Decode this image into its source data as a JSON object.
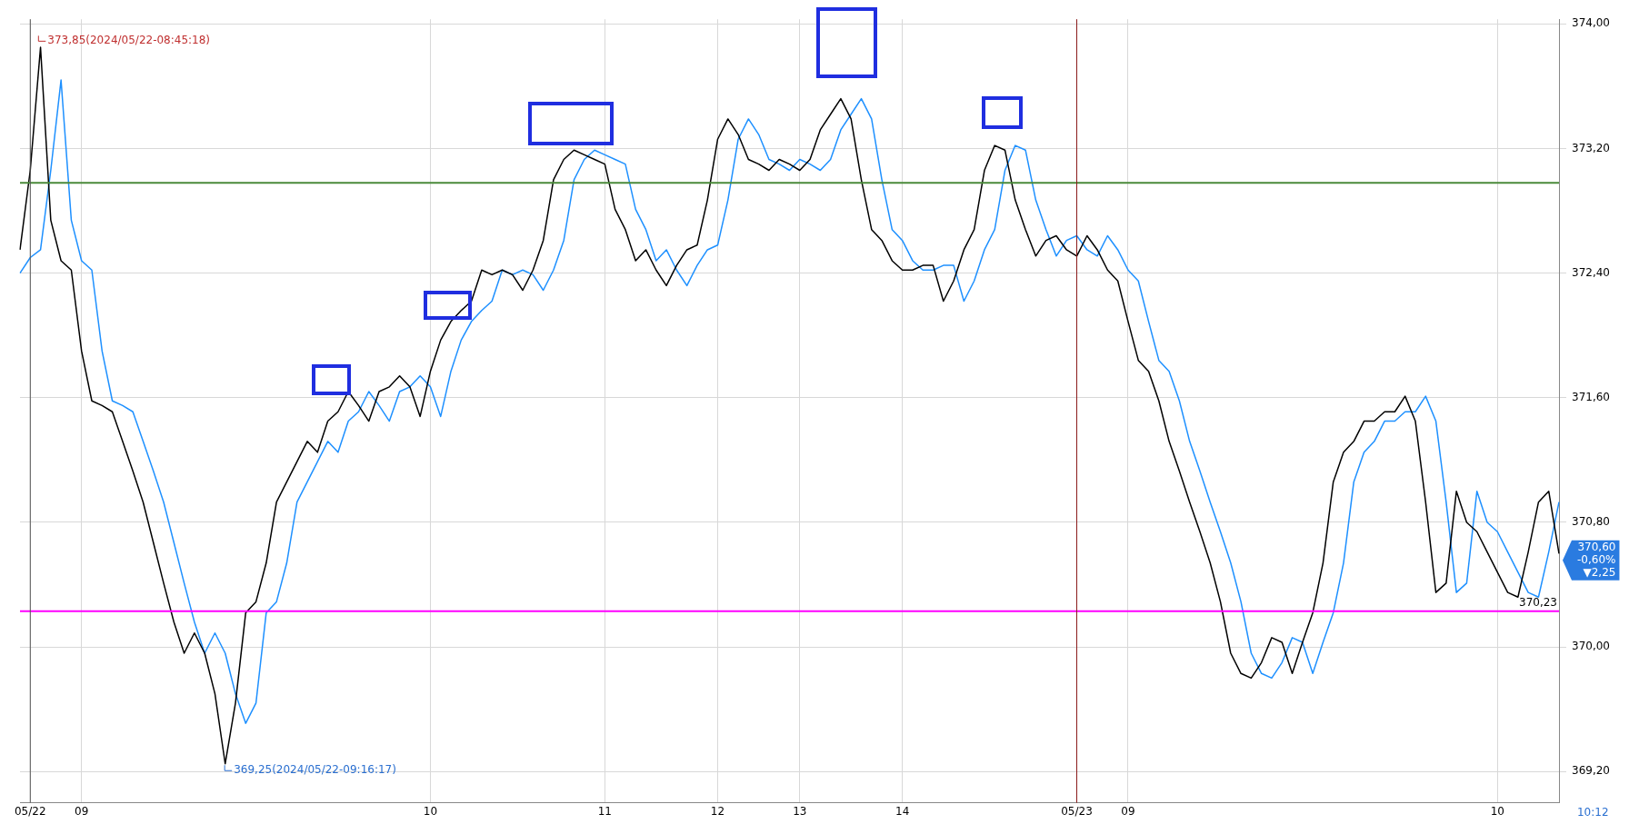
{
  "chart_data": {
    "type": "line",
    "categories": [
      null,
      "05/22",
      null,
      null,
      null,
      null,
      "09",
      null,
      null,
      null,
      null,
      null,
      null,
      null,
      null,
      null,
      null,
      null,
      null,
      null,
      null,
      null,
      null,
      null,
      null,
      null,
      null,
      null,
      null,
      null,
      null,
      null,
      null,
      null,
      null,
      null,
      null,
      null,
      null,
      null,
      "10",
      null,
      null,
      null,
      null,
      null,
      null,
      null,
      null,
      null,
      null,
      null,
      null,
      null,
      null,
      null,
      null,
      "11",
      null,
      null,
      null,
      null,
      null,
      null,
      null,
      null,
      null,
      null,
      "12",
      null,
      null,
      null,
      null,
      null,
      null,
      null,
      "13",
      null,
      null,
      null,
      null,
      null,
      null,
      null,
      null,
      null,
      "14",
      null,
      null,
      null,
      null,
      null,
      null,
      null,
      null,
      null,
      null,
      null,
      null,
      null,
      null,
      null,
      null,
      "05/23",
      null,
      null,
      null,
      null,
      "09",
      null,
      null,
      null,
      null,
      null,
      null,
      null,
      null,
      null,
      null,
      null,
      null,
      null,
      null,
      null,
      null,
      null,
      null,
      null,
      null,
      null,
      null,
      null,
      null,
      null,
      null,
      null,
      null,
      null,
      null,
      null,
      null,
      null,
      null,
      null,
      "10",
      null,
      null,
      null,
      null,
      null,
      null
    ],
    "series": [
      {
        "color": "#000000",
        "values": [
          372.55,
          373.06,
          373.85,
          372.74,
          372.48,
          372.42,
          371.9,
          371.58,
          371.55,
          371.51,
          371.32,
          371.13,
          370.93,
          370.67,
          370.41,
          370.16,
          369.96,
          370.09,
          369.96,
          369.7,
          369.25,
          369.64,
          370.22,
          370.29,
          370.54,
          370.93,
          371.06,
          371.19,
          371.32,
          371.25,
          371.45,
          371.51,
          371.64,
          371.55,
          371.45,
          371.64,
          371.67,
          371.74,
          371.67,
          371.48,
          371.77,
          371.97,
          372.09,
          372.16,
          372.22,
          372.42,
          372.39,
          372.42,
          372.39,
          372.29,
          372.42,
          372.61,
          373.0,
          373.13,
          373.19,
          373.16,
          373.13,
          373.1,
          372.81,
          372.68,
          372.48,
          372.55,
          372.42,
          372.32,
          372.45,
          372.55,
          372.58,
          372.87,
          373.26,
          373.39,
          373.29,
          373.13,
          373.1,
          373.06,
          373.13,
          373.1,
          373.06,
          373.13,
          373.32,
          373.42,
          373.52,
          373.39,
          373.0,
          372.68,
          372.61,
          372.48,
          372.42,
          372.42,
          372.45,
          372.45,
          372.22,
          372.35,
          372.55,
          372.68,
          373.06,
          373.22,
          373.19,
          372.87,
          372.68,
          372.51,
          372.61,
          372.64,
          372.55,
          372.51,
          372.64,
          372.55,
          372.42,
          372.35,
          372.09,
          371.84,
          371.77,
          371.58,
          371.32,
          371.13,
          370.93,
          370.74,
          370.54,
          370.29,
          369.96,
          369.83,
          369.8,
          369.9,
          370.06,
          370.03,
          369.83,
          370.03,
          370.22,
          370.54,
          371.06,
          371.25,
          371.32,
          371.45,
          371.45,
          371.51,
          371.51,
          371.61,
          371.45,
          370.93,
          370.35,
          370.41,
          371.0,
          370.8,
          370.74,
          370.61,
          370.48,
          370.35,
          370.32,
          370.61,
          370.93,
          371.0,
          370.6
        ]
      },
      {
        "color": "#1e90ff",
        "values": [
          372.4,
          372.5,
          372.55,
          373.06,
          373.64,
          372.74,
          372.48,
          372.42,
          371.9,
          371.58,
          371.55,
          371.51,
          371.32,
          371.13,
          370.93,
          370.67,
          370.41,
          370.16,
          369.96,
          370.09,
          369.96,
          369.7,
          369.51,
          369.64,
          370.22,
          370.29,
          370.54,
          370.93,
          371.06,
          371.19,
          371.32,
          371.25,
          371.45,
          371.51,
          371.64,
          371.55,
          371.45,
          371.64,
          371.67,
          371.74,
          371.67,
          371.48,
          371.77,
          371.97,
          372.09,
          372.16,
          372.22,
          372.42,
          372.39,
          372.42,
          372.39,
          372.29,
          372.42,
          372.61,
          373.0,
          373.13,
          373.19,
          373.16,
          373.13,
          373.1,
          372.81,
          372.68,
          372.48,
          372.55,
          372.42,
          372.32,
          372.45,
          372.55,
          372.58,
          372.87,
          373.26,
          373.39,
          373.29,
          373.13,
          373.1,
          373.06,
          373.13,
          373.1,
          373.06,
          373.13,
          373.32,
          373.42,
          373.52,
          373.39,
          373.0,
          372.68,
          372.61,
          372.48,
          372.42,
          372.42,
          372.45,
          372.45,
          372.22,
          372.35,
          372.55,
          372.68,
          373.06,
          373.22,
          373.19,
          372.87,
          372.68,
          372.51,
          372.61,
          372.64,
          372.55,
          372.51,
          372.64,
          372.55,
          372.42,
          372.35,
          372.09,
          371.84,
          371.77,
          371.58,
          371.32,
          371.13,
          370.93,
          370.74,
          370.54,
          370.29,
          369.96,
          369.83,
          369.8,
          369.9,
          370.06,
          370.03,
          369.83,
          370.03,
          370.22,
          370.54,
          371.06,
          371.25,
          371.32,
          371.45,
          371.45,
          371.51,
          371.51,
          371.61,
          371.45,
          370.93,
          370.35,
          370.41,
          371.0,
          370.8,
          370.74,
          370.61,
          370.48,
          370.35,
          370.32,
          370.61,
          370.93
        ]
      }
    ],
    "ylim": [
      369.0,
      374.03
    ],
    "yticks": [
      {
        "value": 369.2,
        "label": "369,20"
      },
      {
        "value": 370,
        "label": "370,00"
      },
      {
        "value": 370.8,
        "label": "370,80"
      },
      {
        "value": 371.6,
        "label": "371,60"
      },
      {
        "value": 372.4,
        "label": "372,40"
      },
      {
        "value": 373.2,
        "label": "373,20"
      },
      {
        "value": 374,
        "label": "374,00"
      }
    ],
    "grid": true,
    "ref_lines": [
      {
        "axis": "y",
        "value": 372.98,
        "label": null,
        "color": "#4a8a3a"
      },
      {
        "axis": "y",
        "value": 370.23,
        "label": "370,23",
        "color": "#ff00ff"
      },
      {
        "axis": "x",
        "value": "05/23",
        "label": null,
        "color": "#8b1a1a"
      },
      {
        "axis": "x",
        "value": "05/22",
        "label": null,
        "color": "#555555"
      }
    ],
    "annotations": [
      "373,85(2024/05/22-08:45:18)",
      "369,25(2024/05/22-09:16:17)",
      "370,60 -0,60% ▼2,25",
      "10:12"
    ]
  }
}
